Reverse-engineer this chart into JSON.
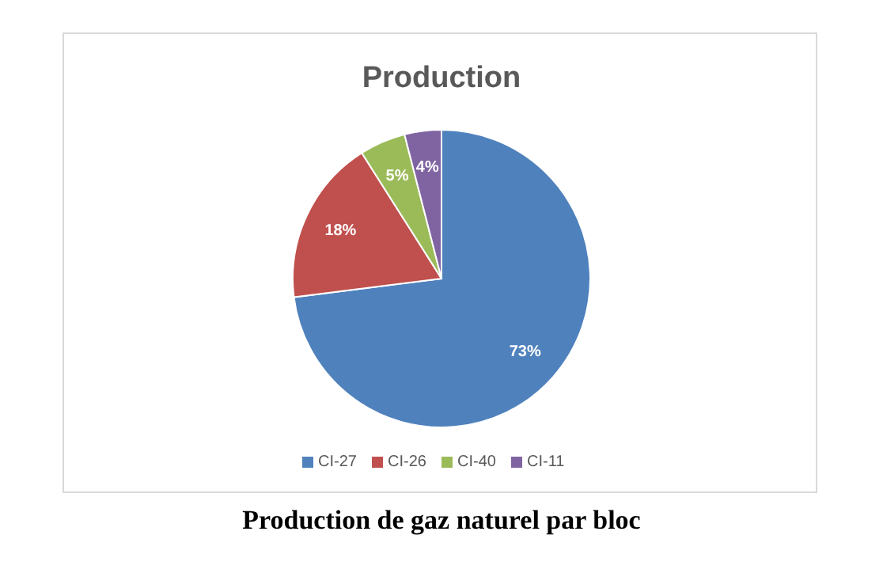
{
  "chart_data": {
    "type": "pie",
    "title": "Production",
    "categories": [
      "CI-27",
      "CI-26",
      "CI-40",
      "CI-11"
    ],
    "values": [
      73,
      18,
      5,
      4
    ],
    "colors": [
      "#4f81bd",
      "#c0504d",
      "#9bbb59",
      "#8064a2"
    ],
    "value_labels": [
      "73%",
      "18%",
      "5%",
      "4%"
    ],
    "legend": "bottom",
    "annotations": [
      "Production de gaz naturel par bloc"
    ]
  }
}
